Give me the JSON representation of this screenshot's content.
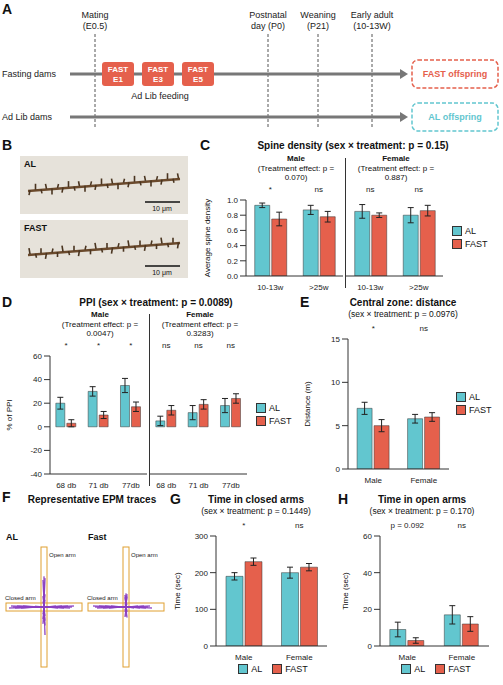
{
  "diagram_A": {
    "panel": "A",
    "rows": [
      "Fasting dams",
      "Ad Lib dams"
    ],
    "events": [
      {
        "lines": [
          "Mating",
          "(E0.5)"
        ]
      },
      {
        "lines": [
          "Postnatal",
          "day (P0)"
        ]
      },
      {
        "lines": [
          "Weaning",
          "(P21)"
        ]
      },
      {
        "lines": [
          "Early adult",
          "(10-13W)"
        ]
      }
    ],
    "fasting_days": [
      [
        "FAST",
        "E1"
      ],
      [
        "FAST",
        "E3"
      ],
      [
        "FAST",
        "E5"
      ]
    ],
    "feeding": "Ad Lib feeding",
    "offspring": [
      "FAST offspring",
      "AL offspring"
    ]
  },
  "images_B": {
    "panel": "B",
    "images": [
      "AL",
      "FAST"
    ],
    "scale_bar": "10 μm"
  },
  "traces_F": {
    "panel": "F",
    "title": "Representative EPM traces",
    "traces": [
      "AL",
      "Fast"
    ],
    "open_arm": "Open arm",
    "closed_arm": "Closed arm"
  },
  "chart_data": [
    {
      "panel": "C",
      "type": "bar",
      "title": "Spine density (sex × treatment: p = 0.15)",
      "y_label": "Average spine density",
      "groups": [
        {
          "name": "Male",
          "subtitle": "(Treatment effect: p = 0.070)"
        },
        {
          "name": "Female",
          "subtitle": "(Treatment effect: p = 0.887)"
        }
      ],
      "categories": [
        "10-13w",
        ">25w",
        "10-13w",
        ">25w"
      ],
      "significance": [
        "*",
        "ns",
        "ns",
        "ns"
      ],
      "series": [
        {
          "name": "AL",
          "color": "#62c6cf",
          "values": [
            0.93,
            0.87,
            0.85,
            0.8
          ],
          "errors": [
            0.03,
            0.06,
            0.09,
            0.1
          ]
        },
        {
          "name": "FAST",
          "color": "#e5604c",
          "values": [
            0.75,
            0.78,
            0.8,
            0.86
          ],
          "errors": [
            0.09,
            0.07,
            0.03,
            0.07
          ]
        }
      ],
      "ylim": [
        0,
        1.0
      ],
      "yticks": [
        {
          "value": 0,
          "label": "0.0"
        },
        0.2,
        0.4,
        0.6,
        0.8,
        {
          "value": 1.0,
          "label": "1.0"
        }
      ],
      "legend": "right"
    },
    {
      "panel": "D",
      "type": "bar",
      "title": "PPI (sex × treatment: p = 0.0089)",
      "y_label": "% of PPI",
      "groups": [
        {
          "name": "Male",
          "subtitle": "(Treatment effect: p = 0.0047)"
        },
        {
          "name": "Female",
          "subtitle": "(Treatment effect: p = 0.3283)"
        }
      ],
      "categories": [
        "68 db",
        "71 db",
        "77db",
        "68 db",
        "71 db",
        "77db"
      ],
      "significance": [
        "*",
        "*",
        "*",
        "ns",
        "ns",
        "ns"
      ],
      "series": [
        {
          "name": "AL",
          "color": "#62c6cf",
          "values": [
            20,
            30,
            35,
            5,
            12,
            18
          ],
          "errors": [
            5,
            4,
            6,
            4,
            6,
            6
          ]
        },
        {
          "name": "FAST",
          "color": "#e5604c",
          "values": [
            3,
            10,
            17,
            14,
            19,
            24
          ],
          "errors": [
            3,
            3,
            4,
            4,
            4,
            4
          ]
        }
      ],
      "ylim": [
        -40,
        60
      ],
      "yticks": [
        -40,
        -20,
        0,
        20,
        40,
        60
      ],
      "legend": "right"
    },
    {
      "panel": "E",
      "type": "bar",
      "title": "Central zone: distance",
      "subtitle": "(sex × treatment: p = 0.0976)",
      "y_label": "Distance (m)",
      "categories": [
        "Male",
        "Female"
      ],
      "significance": [
        "*",
        "ns"
      ],
      "series": [
        {
          "name": "AL",
          "color": "#62c6cf",
          "values": [
            7.0,
            5.8
          ],
          "errors": [
            0.7,
            0.5
          ]
        },
        {
          "name": "FAST",
          "color": "#e5604c",
          "values": [
            5.0,
            6.0
          ],
          "errors": [
            0.7,
            0.5
          ]
        }
      ],
      "ylim": [
        0,
        15
      ],
      "yticks": [
        0,
        5,
        10,
        15
      ],
      "legend": "right"
    },
    {
      "panel": "G",
      "type": "bar",
      "title": "Time in closed arms",
      "subtitle": "(sex × treatment: p = 0.1449)",
      "y_label": "Time (sec)",
      "categories": [
        "Male",
        "Female"
      ],
      "significance": [
        "*",
        "ns"
      ],
      "series": [
        {
          "name": "AL",
          "color": "#62c6cf",
          "values": [
            190,
            200
          ],
          "errors": [
            10,
            15
          ]
        },
        {
          "name": "FAST",
          "color": "#e5604c",
          "values": [
            230,
            215
          ],
          "errors": [
            10,
            10
          ]
        }
      ],
      "ylim": [
        0,
        300
      ],
      "yticks": [
        0,
        100,
        200,
        300
      ],
      "legend": "bottom"
    },
    {
      "panel": "H",
      "type": "bar",
      "title": "Time in open arms",
      "subtitle": "(sex × treatment: p = 0.170)",
      "y_label": "Time (sec)",
      "categories": [
        "Male",
        "Female"
      ],
      "significance": [
        "p = 0.092",
        "ns"
      ],
      "series": [
        {
          "name": "AL",
          "color": "#62c6cf",
          "values": [
            9,
            17
          ],
          "errors": [
            4,
            5
          ]
        },
        {
          "name": "FAST",
          "color": "#e5604c",
          "values": [
            3,
            12
          ],
          "errors": [
            1.5,
            4
          ]
        }
      ],
      "ylim": [
        0,
        60
      ],
      "yticks": [
        0,
        20,
        40,
        60
      ],
      "legend": "bottom"
    }
  ]
}
